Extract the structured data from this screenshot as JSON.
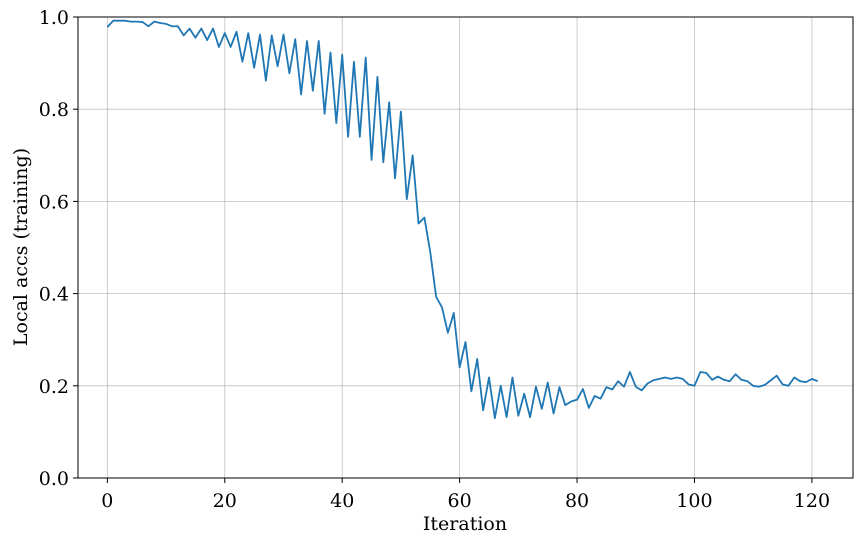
{
  "chart_data": {
    "type": "line",
    "xlabel": "Iteration",
    "ylabel": "Local accs (training)",
    "xlim": [
      -5,
      127
    ],
    "ylim": [
      0,
      1
    ],
    "xticks": [
      0,
      20,
      40,
      60,
      80,
      100,
      120
    ],
    "yticks": [
      0.0,
      0.2,
      0.4,
      0.6,
      0.8,
      1.0
    ],
    "xtick_labels": [
      "0",
      "20",
      "40",
      "60",
      "80",
      "100",
      "120"
    ],
    "ytick_labels": [
      "0.0",
      "0.2",
      "0.4",
      "0.6",
      "0.8",
      "1.0"
    ],
    "grid": true,
    "color": "#1f77b4",
    "series": [
      {
        "x": [
          0,
          1,
          2,
          3,
          4,
          5,
          6,
          7,
          8,
          9,
          10,
          11,
          12,
          13,
          14,
          15,
          16,
          17,
          18,
          19,
          20,
          21,
          22,
          23,
          24,
          25,
          26,
          27,
          28,
          29,
          30,
          31,
          32,
          33,
          34,
          35,
          36,
          37,
          38,
          39,
          40,
          41,
          42,
          43,
          44,
          45,
          46,
          47,
          48,
          49,
          50,
          51,
          52,
          53,
          54,
          55,
          56,
          57,
          58,
          59,
          60,
          61,
          62,
          63,
          64,
          65,
          66,
          67,
          68,
          69,
          70,
          71,
          72,
          73,
          74,
          75,
          76,
          77,
          78,
          79,
          80,
          81,
          82,
          83,
          84,
          85,
          86,
          87,
          88,
          89,
          90,
          91,
          92,
          93,
          94,
          95,
          96,
          97,
          98,
          99,
          100,
          101,
          102,
          103,
          104,
          105,
          106,
          107,
          108,
          109,
          110,
          111,
          112,
          113,
          114,
          115,
          116,
          117,
          118,
          119,
          120,
          121
        ],
        "values": [
          0.978,
          0.992,
          0.992,
          0.992,
          0.99,
          0.99,
          0.989,
          0.98,
          0.99,
          0.987,
          0.985,
          0.98,
          0.98,
          0.96,
          0.975,
          0.955,
          0.975,
          0.95,
          0.975,
          0.935,
          0.965,
          0.935,
          0.968,
          0.903,
          0.965,
          0.89,
          0.962,
          0.862,
          0.96,
          0.893,
          0.962,
          0.878,
          0.952,
          0.832,
          0.948,
          0.84,
          0.948,
          0.79,
          0.923,
          0.77,
          0.918,
          0.74,
          0.903,
          0.74,
          0.912,
          0.69,
          0.87,
          0.685,
          0.815,
          0.65,
          0.795,
          0.605,
          0.7,
          0.552,
          0.565,
          0.49,
          0.393,
          0.37,
          0.315,
          0.358,
          0.24,
          0.295,
          0.188,
          0.258,
          0.147,
          0.218,
          0.13,
          0.2,
          0.132,
          0.218,
          0.135,
          0.183,
          0.132,
          0.198,
          0.15,
          0.207,
          0.14,
          0.197,
          0.158,
          0.166,
          0.17,
          0.193,
          0.152,
          0.178,
          0.172,
          0.197,
          0.192,
          0.21,
          0.198,
          0.23,
          0.198,
          0.19,
          0.205,
          0.212,
          0.215,
          0.218,
          0.215,
          0.218,
          0.215,
          0.203,
          0.2,
          0.23,
          0.228,
          0.213,
          0.22,
          0.213,
          0.21,
          0.225,
          0.213,
          0.21,
          0.2,
          0.198,
          0.202,
          0.212,
          0.222,
          0.203,
          0.2,
          0.218,
          0.21,
          0.208,
          0.215,
          0.21
        ]
      }
    ]
  }
}
